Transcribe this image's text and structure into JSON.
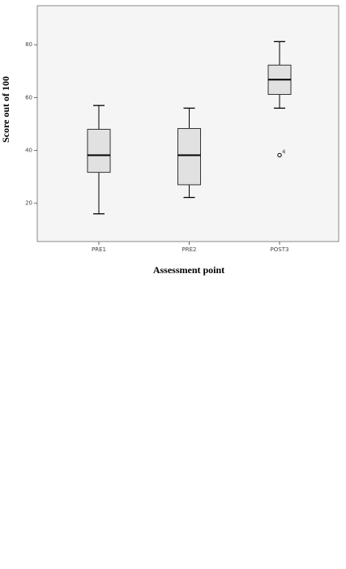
{
  "chart_data": {
    "type": "box",
    "x_label": "Assessment point",
    "y_label": "Score out of 100",
    "categories": [
      "PRE1",
      "PRE2",
      "POST3"
    ],
    "min": [
      16,
      22.2,
      56
    ],
    "q1": [
      31.7,
      27,
      61.2
    ],
    "median": [
      38.2,
      38.2,
      66.8
    ],
    "q3": [
      48,
      48.3,
      72.3
    ],
    "max": [
      57,
      56,
      81.2
    ],
    "outliers": [
      [],
      [],
      [
        38.2
      ]
    ],
    "outlier_labels": [
      [],
      [],
      [
        "4"
      ]
    ],
    "color": "#e1e1e1",
    "ylim": [
      5.5,
      94.8
    ],
    "yticks": [
      20,
      40,
      60,
      80
    ]
  }
}
